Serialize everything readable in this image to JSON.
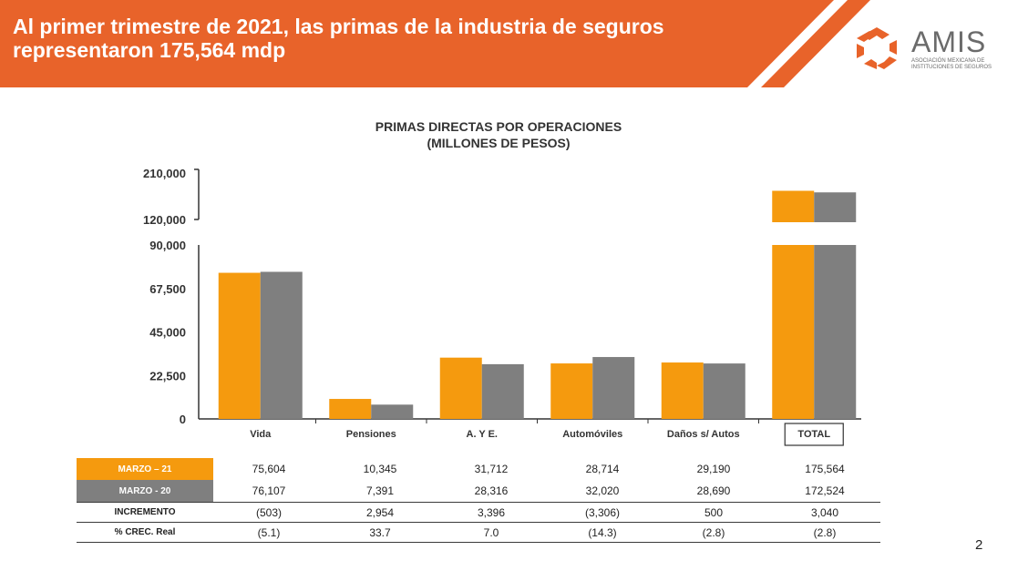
{
  "header": {
    "title": "Al primer trimestre de 2021, las primas de la industria de seguros representaron 175,564 mdp",
    "logo_name": "AMIS",
    "logo_subtitle": "Asociación Mexicana de Instituciones de Seguros"
  },
  "colors": {
    "banner": "#e8632a",
    "series_2021": "#f59a0e",
    "series_2020": "#7f7f7f"
  },
  "chart_data": {
    "type": "bar",
    "title": "PRIMAS DIRECTAS POR OPERACIONES",
    "subtitle": "(MILLONES DE PESOS)",
    "categories": [
      "Vida",
      "Pensiones",
      "A. Y E.",
      "Automóviles",
      "Daños s/ Autos",
      "TOTAL"
    ],
    "series": [
      {
        "name": "MARZO – 21",
        "values": [
          75604,
          10345,
          31712,
          28714,
          29190,
          175564
        ]
      },
      {
        "name": "MARZO - 20",
        "values": [
          76107,
          7391,
          28316,
          32020,
          28690,
          172524
        ]
      }
    ],
    "yticks_lower": [
      "0",
      "22,500",
      "45,000",
      "67,500",
      "90,000"
    ],
    "yticks_upper": [
      "120,000",
      "210,000"
    ],
    "ylim_lower": [
      0,
      90000
    ],
    "ylim_upper": [
      120000,
      210000
    ],
    "broken_axis": true
  },
  "table": {
    "rows": [
      {
        "label": "MARZO – 21",
        "values": [
          "75,604",
          "10,345",
          "31,712",
          "28,714",
          "29,190",
          "175,564"
        ]
      },
      {
        "label": "MARZO -  20",
        "values": [
          "76,107",
          "7,391",
          "28,316",
          "32,020",
          "28,690",
          "172,524"
        ]
      },
      {
        "label": "INCREMENTO",
        "values": [
          "(503)",
          "2,954",
          "3,396",
          "(3,306)",
          "500",
          "3,040"
        ]
      },
      {
        "label": "% CREC. Real",
        "values": [
          "(5.1)",
          "33.7",
          "7.0",
          "(14.3)",
          "(2.8)",
          "(2.8)"
        ]
      }
    ]
  },
  "page_number": "2"
}
